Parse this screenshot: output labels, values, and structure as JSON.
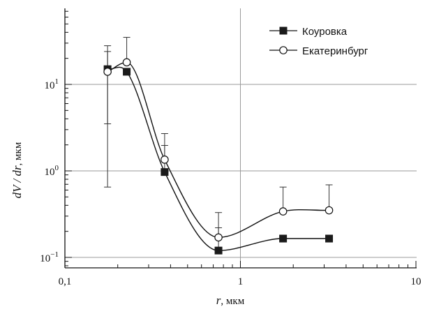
{
  "chart_data": {
    "type": "scatter",
    "x_scale": "log",
    "y_scale": "log",
    "xlim": [
      0.1,
      10
    ],
    "ylim": [
      0.07,
      60
    ],
    "grid": {
      "x": [
        1
      ],
      "y": [
        0.1,
        1,
        10
      ]
    },
    "xlabel": {
      "var": "r",
      "unit": ", мкм"
    },
    "ylabel": {
      "var": "dV / dr",
      "unit": ", мкм"
    },
    "x_ticks": [
      {
        "value": 0.1,
        "label": "0,1"
      },
      {
        "value": 1,
        "label": "1"
      },
      {
        "value": 10,
        "label": "10"
      }
    ],
    "y_ticks": [
      {
        "value": 0.1,
        "base": "10",
        "exp": "−1"
      },
      {
        "value": 1,
        "base": "10",
        "exp": "0"
      },
      {
        "value": 10,
        "base": "10",
        "exp": "1"
      }
    ],
    "legend_position": "top-right",
    "series": [
      {
        "name": "Коуровка",
        "marker": "filled-square",
        "x": [
          0.175,
          0.225,
          0.37,
          0.75,
          1.75,
          3.2
        ],
        "y": [
          15,
          14,
          0.97,
          0.12,
          0.165,
          0.165
        ],
        "err_low": [
          3.5,
          13.9,
          0.97,
          0.12,
          0.165,
          0.165
        ],
        "err_high": [
          28,
          14,
          1.97,
          0.22,
          0.165,
          0.165
        ]
      },
      {
        "name": "Екатеринбург",
        "marker": "open-circle",
        "x": [
          0.175,
          0.225,
          0.37,
          0.75,
          1.75,
          3.2
        ],
        "y": [
          14,
          18,
          1.35,
          0.17,
          0.34,
          0.35
        ],
        "err_low": [
          0.65,
          18,
          1.35,
          0.17,
          0.34,
          0.35
        ],
        "err_high": [
          24,
          35,
          2.7,
          0.33,
          0.65,
          0.69
        ]
      }
    ]
  }
}
